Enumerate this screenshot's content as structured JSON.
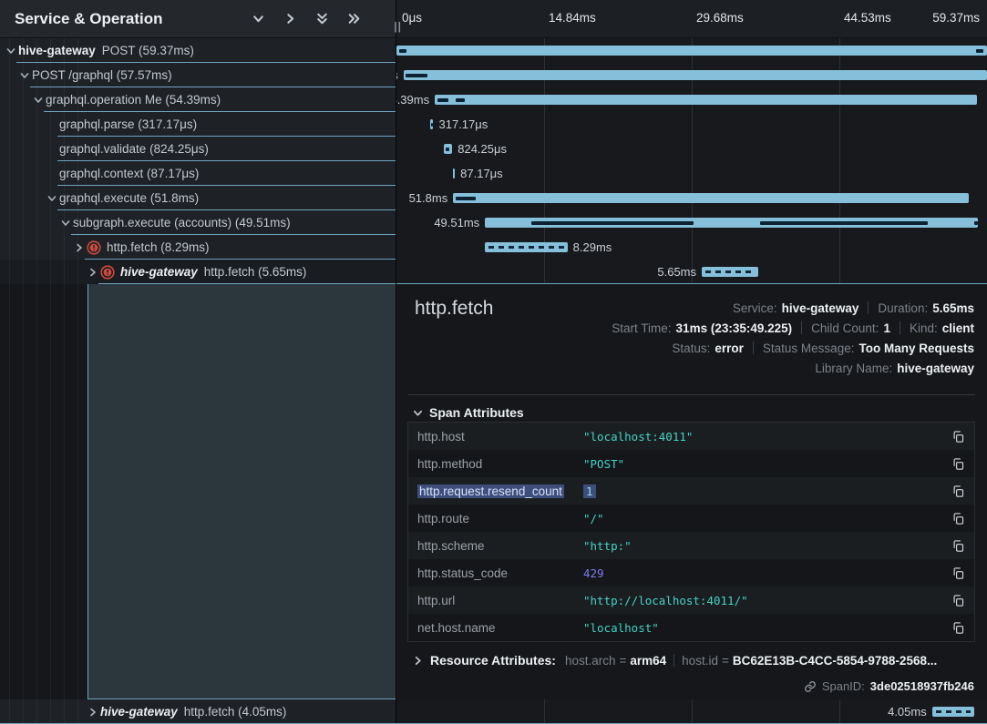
{
  "panel_header": {
    "title": "Service & Operation",
    "controls": [
      {
        "icon": "chevron-down-icon"
      },
      {
        "icon": "chevron-right-icon"
      },
      {
        "icon": "double-chevron-down-icon"
      },
      {
        "icon": "double-chevron-right-icon"
      }
    ],
    "resize_handle": "||"
  },
  "timeline_ruler": {
    "ticks": [
      "0μs",
      "14.84ms",
      "29.68ms",
      "44.53ms",
      "59.37ms"
    ],
    "tick_positions_pct": [
      0,
      25,
      50,
      75,
      100
    ]
  },
  "spans": [
    {
      "service": "hive-gateway",
      "service_italic": false,
      "label": "POST (59.37ms)",
      "depth": 0,
      "chevron": "down",
      "error": false,
      "selected": false,
      "bar": {
        "start_pct": 0,
        "width_pct": 100,
        "duration_label": "59.37ms",
        "label_side": "left",
        "dashed": false,
        "marks": [
          [
            0.5,
            1.2
          ],
          [
            98.2,
            1.2
          ]
        ]
      }
    },
    {
      "service": null,
      "label": "POST /graphql (57.57ms)",
      "depth": 1,
      "chevron": "down",
      "error": false,
      "selected": false,
      "bar": {
        "start_pct": 1.2,
        "width_pct": 98.8,
        "duration_label": "57.57ms",
        "label_side": "left",
        "dashed": false,
        "marks": [
          [
            1.6,
            3.6
          ]
        ]
      }
    },
    {
      "service": null,
      "label": "graphql.operation Me (54.39ms)",
      "depth": 2,
      "chevron": "down",
      "error": false,
      "selected": false,
      "bar": {
        "start_pct": 6.5,
        "width_pct": 91.8,
        "duration_label": "54.39ms",
        "label_side": "left",
        "dashed": false,
        "marks": [
          [
            7.0,
            1.8
          ],
          [
            10.0,
            1.5
          ]
        ]
      }
    },
    {
      "service": null,
      "label": "graphql.parse (317.17μs)",
      "depth": 3,
      "chevron": null,
      "error": false,
      "selected": false,
      "bar": {
        "start_pct": 5.7,
        "width_pct": 0.55,
        "duration_label": "317.17μs",
        "label_side": "right",
        "dashed": false,
        "marks": [
          [
            5.82,
            0.18
          ]
        ]
      }
    },
    {
      "service": null,
      "label": "graphql.validate (824.25μs)",
      "depth": 3,
      "chevron": null,
      "error": false,
      "selected": false,
      "bar": {
        "start_pct": 8.0,
        "width_pct": 1.45,
        "duration_label": "824.25μs",
        "label_side": "right",
        "dashed": false,
        "marks": [
          [
            8.3,
            0.7
          ]
        ]
      }
    },
    {
      "service": null,
      "label": "graphql.context (87.17μs)",
      "depth": 3,
      "chevron": null,
      "error": false,
      "selected": false,
      "bar": {
        "start_pct": 9.6,
        "width_pct": 0.3,
        "duration_label": "87.17μs",
        "label_side": "right",
        "dashed": false,
        "marks": []
      }
    },
    {
      "service": null,
      "label": "graphql.execute (51.8ms)",
      "depth": 3,
      "chevron": "down",
      "error": false,
      "selected": false,
      "bar": {
        "start_pct": 9.6,
        "width_pct": 87.3,
        "duration_label": "51.8ms",
        "label_side": "left",
        "dashed": false,
        "marks": [
          [
            10.1,
            3.4
          ]
        ]
      }
    },
    {
      "service": null,
      "label": "subgraph.execute (accounts) (49.51ms)",
      "depth": 4,
      "chevron": "down",
      "error": false,
      "selected": false,
      "bar": {
        "start_pct": 15.0,
        "width_pct": 83.4,
        "duration_label": "49.51ms",
        "label_side": "left",
        "dashed": false,
        "marks": [
          [
            22.8,
            27.5
          ],
          [
            61.5,
            28.5
          ],
          [
            97.9,
            0.6
          ]
        ]
      }
    },
    {
      "service": null,
      "label": "http.fetch (8.29ms)",
      "depth": 5,
      "chevron": "right",
      "error": true,
      "selected": false,
      "bar": {
        "start_pct": 15.0,
        "width_pct": 13.96,
        "duration_label": "8.29ms",
        "label_side": "right",
        "dashed": true,
        "marks": []
      }
    },
    {
      "service": "hive-gateway",
      "service_italic": true,
      "label": "http.fetch (5.65ms)",
      "depth": 6,
      "chevron": "right",
      "error": true,
      "selected": true,
      "bar": {
        "start_pct": 51.7,
        "width_pct": 9.55,
        "duration_label": "5.65ms",
        "label_side": "left",
        "dashed": true,
        "marks": []
      }
    }
  ],
  "bottom_span": {
    "service": "hive-gateway",
    "service_italic": true,
    "label": "http.fetch (4.05ms)",
    "depth": 6,
    "chevron": "right",
    "error": false,
    "selected": false,
    "bar": {
      "start_pct": 90.7,
      "width_pct": 7.1,
      "duration_label": "4.05ms",
      "label_side": "left",
      "dashed": true,
      "marks": []
    }
  },
  "detail": {
    "title": "http.fetch",
    "meta_lines": [
      [
        {
          "label": "Service:",
          "value": "hive-gateway"
        },
        {
          "label": "Duration:",
          "value": "5.65ms"
        }
      ],
      [
        {
          "label": "Start Time:",
          "value": "31ms (23:35:49.225)"
        },
        {
          "label": "Child Count:",
          "value": "1"
        },
        {
          "label": "Kind:",
          "value": "client"
        }
      ],
      [
        {
          "label": "Status:",
          "value": "error"
        },
        {
          "label": "Status Message:",
          "value": "Too Many Requests"
        }
      ],
      [
        {
          "label": "Library Name:",
          "value": "hive-gateway"
        }
      ]
    ],
    "span_attributes": {
      "heading": "Span Attributes",
      "rows": [
        {
          "key": "http.host",
          "value": "\"localhost:4011\"",
          "type": "string",
          "highlighted": false
        },
        {
          "key": "http.method",
          "value": "\"POST\"",
          "type": "string",
          "highlighted": false
        },
        {
          "key": "http.request.resend_count",
          "value": "1",
          "type": "number",
          "highlighted": true
        },
        {
          "key": "http.route",
          "value": "\"/\"",
          "type": "string",
          "highlighted": false
        },
        {
          "key": "http.scheme",
          "value": "\"http:\"",
          "type": "string",
          "highlighted": false
        },
        {
          "key": "http.status_code",
          "value": "429",
          "type": "number",
          "highlighted": false
        },
        {
          "key": "http.url",
          "value": "\"http://localhost:4011/\"",
          "type": "string",
          "highlighted": false
        },
        {
          "key": "net.host.name",
          "value": "\"localhost\"",
          "type": "string",
          "highlighted": false
        }
      ]
    },
    "resource_attributes": {
      "heading": "Resource Attributes:",
      "pairs": [
        {
          "key": "host.arch",
          "value": "arm64"
        },
        {
          "key": "host.id",
          "value": "BC62E13B-C4CC-5854-9788-2568..."
        }
      ]
    },
    "span_id": {
      "label": "SpanID:",
      "value": "3de02518937fb246"
    }
  },
  "colors": {
    "bar": "#85bfda",
    "accent_border": "#6fa4c0",
    "string_value": "#45d3c6",
    "number_value": "#7e7ef5",
    "error_icon": "#cd4a3d",
    "selection": "#3d4e7d"
  }
}
